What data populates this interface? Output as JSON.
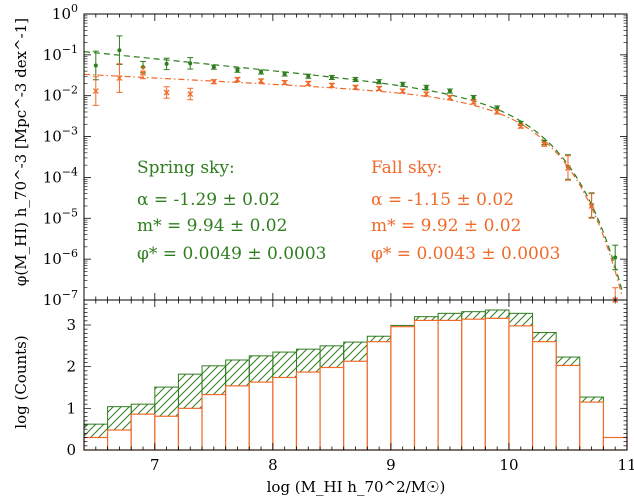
{
  "colors": {
    "spring": "#2e7d1e",
    "fall": "#f06a2a",
    "axis": "#000000"
  },
  "chart_data": [
    {
      "type": "scatter",
      "panel": "top",
      "ylabel": "φ(M_HI) h_70^-3 [Mpc^-3 dex^-1]",
      "yscale": "log",
      "ylim": [
        1e-07,
        1
      ],
      "xlim": [
        6.4,
        11.0
      ],
      "yticks": [
        "10^0",
        "10^-1",
        "10^-2",
        "10^-3",
        "10^-4",
        "10^-5",
        "10^-6",
        "10^-7"
      ],
      "series": [
        {
          "name": "Spring sky",
          "color": "#2e7d1e",
          "x": [
            6.5,
            6.7,
            6.9,
            7.1,
            7.3,
            7.5,
            7.7,
            7.9,
            8.1,
            8.3,
            8.5,
            8.7,
            8.9,
            9.1,
            9.3,
            9.5,
            9.7,
            9.9,
            10.1,
            10.3,
            10.5,
            10.7,
            10.9
          ],
          "y": [
            0.055,
            0.13,
            0.05,
            0.06,
            0.062,
            0.05,
            0.042,
            0.038,
            0.034,
            0.03,
            0.028,
            0.025,
            0.022,
            0.019,
            0.016,
            0.013,
            0.009,
            0.005,
            0.0021,
            0.00072,
            0.00018,
            2.1e-05,
            1.1e-06
          ]
        },
        {
          "name": "Fall sky",
          "color": "#f06a2a",
          "x": [
            6.5,
            6.7,
            6.9,
            7.1,
            7.3,
            7.5,
            7.7,
            7.9,
            8.1,
            8.3,
            8.5,
            8.7,
            8.9,
            9.1,
            9.3,
            9.5,
            9.7,
            9.9,
            10.1,
            10.3,
            10.5,
            10.7,
            10.9
          ],
          "y": [
            0.013,
            0.027,
            0.036,
            0.012,
            0.011,
            0.022,
            0.025,
            0.023,
            0.021,
            0.02,
            0.018,
            0.016,
            0.015,
            0.013,
            0.011,
            0.009,
            0.007,
            0.004,
            0.0018,
            0.00065,
            0.00017,
            2e-05,
            1e-07
          ]
        }
      ],
      "fits": [
        {
          "name": "Spring sky",
          "alpha": -1.29,
          "log_mstar": 9.94,
          "phistar": 0.0049
        },
        {
          "name": "Fall sky",
          "alpha": -1.15,
          "log_mstar": 9.92,
          "phistar": 0.0043
        }
      ],
      "annotations": {
        "spring": {
          "title": "Spring sky:",
          "alpha": "α = -1.29 ± 0.02",
          "mstar": "m* = 9.94 ± 0.02",
          "phistar": "φ* = 0.0049 ± 0.0003"
        },
        "fall": {
          "title": "Fall sky:",
          "alpha": "α = -1.15 ± 0.02",
          "mstar": "m* = 9.92 ± 0.02",
          "phistar": "φ* = 0.0043 ± 0.0003"
        }
      }
    },
    {
      "type": "bar",
      "panel": "bottom",
      "xlabel": "log (M_HI h_70^2/M☉)",
      "ylabel": "log (Counts)",
      "xlim": [
        6.4,
        11.0
      ],
      "ylim": [
        0,
        3.6
      ],
      "xticks": [
        "7",
        "8",
        "9",
        "10",
        "11"
      ],
      "yticks": [
        "0",
        "1",
        "2",
        "3"
      ],
      "bin_edges": [
        6.4,
        6.6,
        6.8,
        7.0,
        7.2,
        7.4,
        7.6,
        7.8,
        8.0,
        8.2,
        8.4,
        8.6,
        8.8,
        9.0,
        9.2,
        9.4,
        9.6,
        9.8,
        10.0,
        10.2,
        10.4,
        10.6,
        10.8,
        11.0
      ],
      "series": [
        {
          "name": "Spring sky",
          "values": [
            0.62,
            1.04,
            1.1,
            1.51,
            1.82,
            2.02,
            2.16,
            2.26,
            2.35,
            2.42,
            2.5,
            2.59,
            2.73,
            2.99,
            3.2,
            3.28,
            3.32,
            3.36,
            3.28,
            2.82,
            2.23,
            1.27,
            0.3
          ]
        },
        {
          "name": "Fall sky",
          "values": [
            0.3,
            0.48,
            0.86,
            0.81,
            1.0,
            1.33,
            1.54,
            1.63,
            1.74,
            1.87,
            1.98,
            2.13,
            2.6,
            2.96,
            3.11,
            3.11,
            3.14,
            3.16,
            2.98,
            2.6,
            2.03,
            1.15,
            0.3
          ]
        }
      ]
    }
  ]
}
